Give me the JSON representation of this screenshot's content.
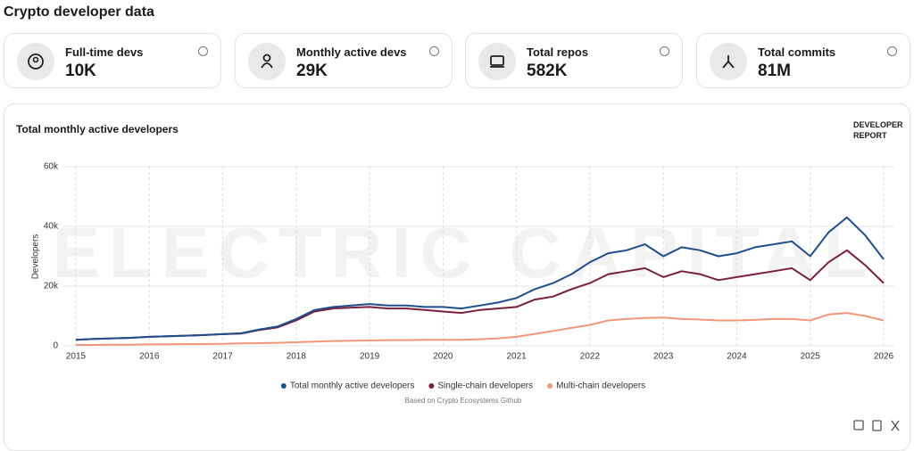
{
  "header": {
    "title": "Crypto developer data"
  },
  "stats": [
    {
      "label": "Full-time devs",
      "value": "10K"
    },
    {
      "label": "Monthly active devs",
      "value": "29K"
    },
    {
      "label": "Total repos",
      "value": "582K"
    },
    {
      "label": "Total commits",
      "value": "81M"
    }
  ],
  "chart_data": {
    "type": "line",
    "title": "Total monthly active developers",
    "badge": "DEVELOPER REPORT",
    "watermark": "ELECTRIC CAPITAL",
    "ylabel": "Developers",
    "footnote": "Based on Crypto Ecosystems Github",
    "xlim": [
      2015,
      2026
    ],
    "xticks": [
      2015,
      2016,
      2017,
      2018,
      2019,
      2020,
      2021,
      2022,
      2023,
      2024,
      2025,
      2026
    ],
    "ylim": [
      0,
      60000
    ],
    "yticks": [
      0,
      {
        "value": 20000,
        "label": "20k"
      },
      {
        "value": 40000,
        "label": "40k"
      },
      {
        "value": 60000,
        "label": "60k"
      }
    ],
    "grid": true,
    "x": [
      2015,
      2015.25,
      2015.5,
      2015.75,
      2016,
      2016.25,
      2016.5,
      2016.75,
      2017,
      2017.25,
      2017.5,
      2017.75,
      2018,
      2018.25,
      2018.5,
      2018.75,
      2019,
      2019.25,
      2019.5,
      2019.75,
      2020,
      2020.25,
      2020.5,
      2020.75,
      2021,
      2021.25,
      2021.5,
      2021.75,
      2022,
      2022.25,
      2022.5,
      2022.75,
      2023,
      2023.25,
      2023.5,
      2023.75,
      2024,
      2024.25,
      2024.5,
      2024.75,
      2025,
      2025.25,
      2025.5,
      2025.75,
      2026
    ],
    "series": [
      {
        "name": "Total monthly active developers",
        "color": "#1f4e8c",
        "values": [
          2000,
          2300,
          2500,
          2700,
          3000,
          3200,
          3400,
          3600,
          3900,
          4200,
          5500,
          6500,
          9000,
          12000,
          13000,
          13500,
          14000,
          13500,
          13500,
          13000,
          13000,
          12500,
          13500,
          14500,
          16000,
          19000,
          21000,
          24000,
          28000,
          31000,
          32000,
          34000,
          30000,
          33000,
          32000,
          30000,
          31000,
          33000,
          34000,
          35000,
          30000,
          38000,
          43000,
          37000,
          29000
        ]
      },
      {
        "name": "Single-chain developers",
        "color": "#7a1f3d",
        "values": [
          2000,
          2300,
          2500,
          2700,
          3000,
          3200,
          3400,
          3600,
          3900,
          4100,
          5300,
          6200,
          8500,
          11500,
          12500,
          12800,
          13000,
          12500,
          12500,
          12000,
          11500,
          11000,
          12000,
          12500,
          13000,
          15500,
          16500,
          19000,
          21000,
          24000,
          25000,
          26000,
          23000,
          25000,
          24000,
          22000,
          23000,
          24000,
          25000,
          26000,
          22000,
          28000,
          32000,
          27000,
          21000
        ]
      },
      {
        "name": "Multi-chain developers",
        "color": "#f0977a",
        "values": [
          300,
          300,
          400,
          400,
          500,
          500,
          600,
          600,
          700,
          800,
          900,
          1000,
          1200,
          1400,
          1600,
          1700,
          1800,
          1900,
          1900,
          2000,
          2000,
          2000,
          2200,
          2500,
          3000,
          4000,
          5000,
          6000,
          7000,
          8500,
          9000,
          9300,
          9500,
          9000,
          8800,
          8500,
          8500,
          8700,
          9000,
          9000,
          8500,
          10500,
          11000,
          10000,
          8500
        ]
      }
    ]
  }
}
